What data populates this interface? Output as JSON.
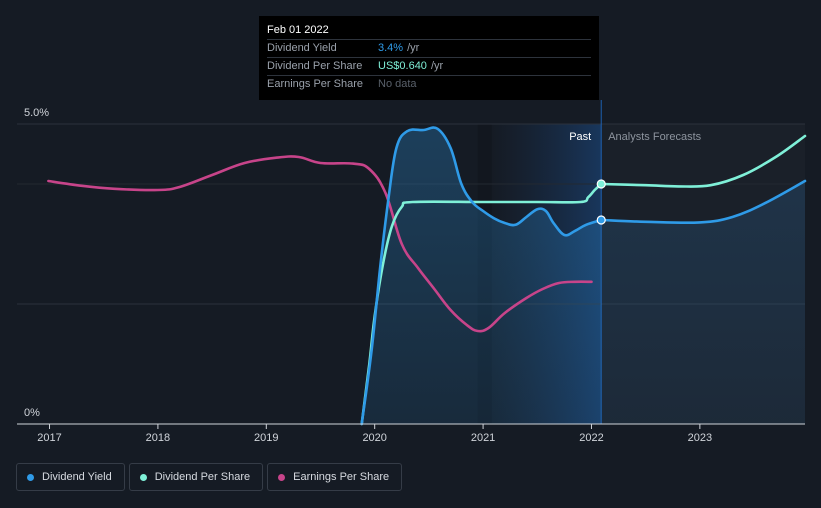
{
  "tooltip": {
    "date": "Feb 01 2022",
    "rows": [
      {
        "label": "Dividend Yield",
        "value": "3.4%",
        "unit": "/yr"
      },
      {
        "label": "Dividend Per Share",
        "value": "US$0.640",
        "unit": "/yr"
      },
      {
        "label": "Earnings Per Share",
        "value": "No data",
        "unit": ""
      }
    ]
  },
  "legend": [
    {
      "label": "Dividend Yield",
      "color": "#2f9be8"
    },
    {
      "label": "Dividend Per Share",
      "color": "#7ff0d8"
    },
    {
      "label": "Earnings Per Share",
      "color": "#c7448a"
    }
  ],
  "chart_data": {
    "type": "line",
    "title": "",
    "xlabel": "",
    "ylabel": "",
    "x_ticks": [
      "2017",
      "2018",
      "2019",
      "2020",
      "2021",
      "2022",
      "2023"
    ],
    "y_ticks": [
      "0%",
      "5.0%"
    ],
    "xlim": [
      2016.7,
      2023.97
    ],
    "ylim": [
      0,
      5.0
    ],
    "past_label": "Past",
    "forecast_label": "Analysts Forecasts",
    "past_region": [
      2021.08,
      2022.09
    ],
    "marker_x": 2022.09,
    "grid": true,
    "series": [
      {
        "name": "Dividend Yield",
        "color": "#2f9be8",
        "fill": true,
        "points": [
          [
            2019.88,
            0
          ],
          [
            2019.97,
            1.2
          ],
          [
            2020.05,
            2.6
          ],
          [
            2020.13,
            3.8
          ],
          [
            2020.2,
            4.6
          ],
          [
            2020.3,
            4.88
          ],
          [
            2020.45,
            4.9
          ],
          [
            2020.58,
            4.92
          ],
          [
            2020.7,
            4.6
          ],
          [
            2020.8,
            4.0
          ],
          [
            2020.9,
            3.7
          ],
          [
            2021.0,
            3.55
          ],
          [
            2021.1,
            3.43
          ],
          [
            2021.2,
            3.35
          ],
          [
            2021.3,
            3.32
          ],
          [
            2021.4,
            3.45
          ],
          [
            2021.5,
            3.58
          ],
          [
            2021.58,
            3.55
          ],
          [
            2021.65,
            3.35
          ],
          [
            2021.75,
            3.15
          ],
          [
            2021.85,
            3.22
          ],
          [
            2021.95,
            3.32
          ],
          [
            2022.09,
            3.4
          ]
        ],
        "forecast": [
          [
            2022.09,
            3.4
          ],
          [
            2022.5,
            3.37
          ],
          [
            2023.0,
            3.36
          ],
          [
            2023.3,
            3.45
          ],
          [
            2023.6,
            3.68
          ],
          [
            2023.97,
            4.05
          ]
        ]
      },
      {
        "name": "Dividend Per Share",
        "color": "#7ff0d8",
        "fill": false,
        "points": [
          [
            2019.88,
            0
          ],
          [
            2019.95,
            1.0
          ],
          [
            2020.0,
            1.8
          ],
          [
            2020.08,
            2.7
          ],
          [
            2020.16,
            3.3
          ],
          [
            2020.25,
            3.62
          ],
          [
            2020.35,
            3.7
          ],
          [
            2021.0,
            3.7
          ],
          [
            2021.5,
            3.7
          ],
          [
            2021.9,
            3.7
          ],
          [
            2021.97,
            3.78
          ],
          [
            2022.03,
            3.9
          ],
          [
            2022.09,
            4.0
          ]
        ],
        "forecast": [
          [
            2022.09,
            4.0
          ],
          [
            2022.5,
            3.98
          ],
          [
            2022.8,
            3.96
          ],
          [
            2023.1,
            3.98
          ],
          [
            2023.4,
            4.15
          ],
          [
            2023.7,
            4.45
          ],
          [
            2023.97,
            4.8
          ]
        ]
      },
      {
        "name": "Earnings Per Share",
        "color": "#c7448a",
        "fill": false,
        "points": [
          [
            2016.99,
            4.05
          ],
          [
            2017.3,
            3.97
          ],
          [
            2017.6,
            3.92
          ],
          [
            2018.0,
            3.9
          ],
          [
            2018.2,
            3.95
          ],
          [
            2018.5,
            4.15
          ],
          [
            2018.8,
            4.35
          ],
          [
            2019.1,
            4.44
          ],
          [
            2019.3,
            4.45
          ],
          [
            2019.5,
            4.35
          ],
          [
            2019.8,
            4.34
          ],
          [
            2019.95,
            4.25
          ],
          [
            2020.1,
            3.85
          ],
          [
            2020.25,
            3.0
          ],
          [
            2020.4,
            2.6
          ],
          [
            2020.55,
            2.25
          ],
          [
            2020.7,
            1.9
          ],
          [
            2020.85,
            1.65
          ],
          [
            2020.95,
            1.55
          ],
          [
            2021.05,
            1.6
          ],
          [
            2021.2,
            1.85
          ],
          [
            2021.4,
            2.1
          ],
          [
            2021.55,
            2.25
          ],
          [
            2021.7,
            2.35
          ],
          [
            2021.85,
            2.37
          ],
          [
            2022.0,
            2.37
          ]
        ]
      }
    ]
  }
}
